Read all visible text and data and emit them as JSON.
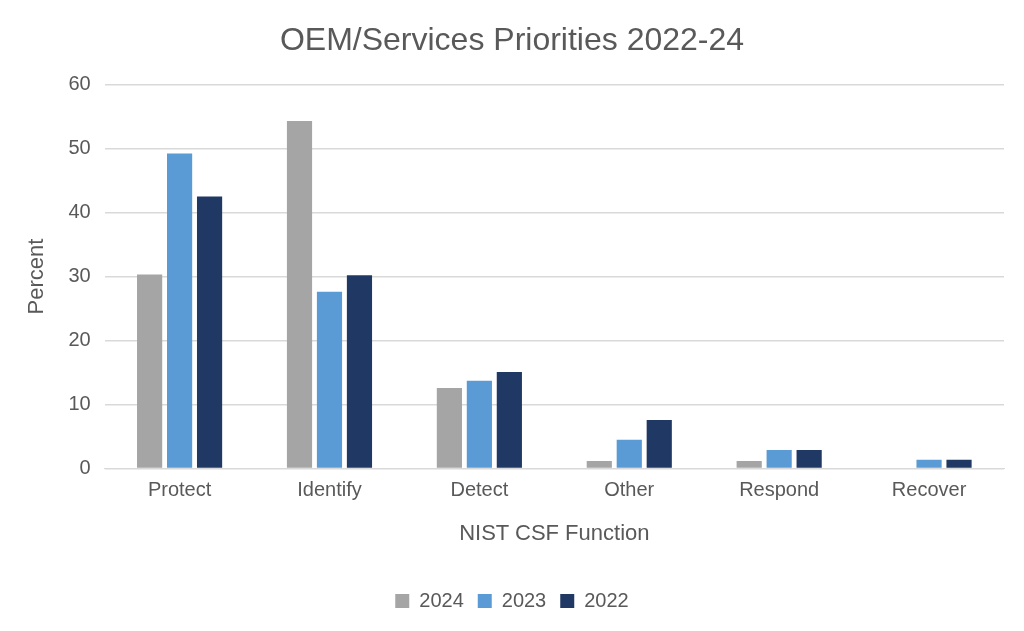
{
  "chart_data": {
    "type": "bar",
    "title": "OEM/Services Priorities 2022-24",
    "xlabel": "NIST CSF Function",
    "ylabel": "Percent",
    "categories": [
      "Protect",
      "Identify",
      "Detect",
      "Other",
      "Respond",
      "Recover"
    ],
    "series": [
      {
        "name": "2024",
        "color": "#a5a5a5",
        "values": [
          30.3,
          54.3,
          12.6,
          1.2,
          1.2,
          0
        ]
      },
      {
        "name": "2023",
        "color": "#5b9bd5",
        "values": [
          49.2,
          27.6,
          13.7,
          4.5,
          2.9,
          1.4
        ]
      },
      {
        "name": "2022",
        "color": "#203864",
        "values": [
          42.5,
          30.2,
          15.1,
          7.6,
          2.9,
          1.4
        ]
      }
    ],
    "ylim": [
      0,
      60
    ],
    "yticks": [
      0,
      10,
      20,
      30,
      40,
      50,
      60
    ],
    "grid": "y",
    "legend": "bottom"
  }
}
